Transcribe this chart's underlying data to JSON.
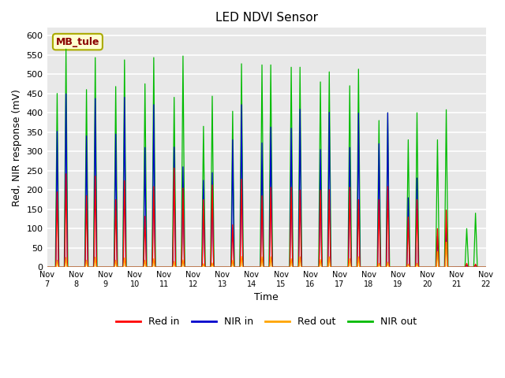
{
  "title": "LED NDVI Sensor",
  "ylabel": "Red, NIR response (mV)",
  "xlabel": "Time",
  "ylim": [
    0,
    620
  ],
  "yticks": [
    0,
    50,
    100,
    150,
    200,
    250,
    300,
    350,
    400,
    450,
    500,
    550,
    600
  ],
  "annotation_text": "MB_tule",
  "annotation_color": "#8B0000",
  "annotation_bg": "#FFFFD0",
  "annotation_border": "#AAAA00",
  "series_colors": {
    "red_in": "#FF0000",
    "nir_in": "#0000CC",
    "red_out": "#FFA500",
    "nir_out": "#00BB00"
  },
  "legend_labels": [
    "Red in",
    "NIR in",
    "Red out",
    "NIR out"
  ],
  "background_color": "#E8E8E8",
  "grid_color": "#FFFFFF",
  "num_days": 15,
  "xtick_labels": [
    "Nov 7",
    "Nov 8",
    "Nov 9",
    "Nov 10",
    "Nov 11",
    "Nov 12",
    "Nov 13",
    "Nov 14",
    "Nov 15",
    "Nov 16",
    "Nov 17",
    "Nov 18",
    "Nov 19",
    "Nov 20",
    "Nov 21",
    "Nov 22"
  ],
  "spike1_red_in": [
    195,
    185,
    175,
    132,
    257,
    175,
    110,
    185,
    207,
    200,
    207,
    175,
    130,
    100,
    10
  ],
  "spike2_red_in": [
    242,
    236,
    224,
    209,
    205,
    213,
    228,
    207,
    200,
    201,
    175,
    209,
    175,
    148,
    8
  ],
  "spike1_nir_in": [
    352,
    340,
    345,
    310,
    311,
    225,
    330,
    322,
    360,
    305,
    310,
    320,
    180,
    80,
    4
  ],
  "spike2_nir_in": [
    449,
    437,
    440,
    421,
    260,
    245,
    421,
    363,
    409,
    401,
    399,
    400,
    231,
    100,
    4
  ],
  "spike1_nir_out": [
    450,
    460,
    468,
    475,
    440,
    365,
    404,
    524,
    518,
    480,
    470,
    380,
    330,
    330,
    100
  ],
  "spike2_nir_out": [
    565,
    543,
    537,
    543,
    547,
    443,
    527,
    524,
    518,
    506,
    513,
    400,
    400,
    408,
    140
  ],
  "spike1_red_out": [
    18,
    18,
    18,
    18,
    15,
    9,
    18,
    27,
    22,
    20,
    22,
    10,
    8,
    40,
    0
  ],
  "spike2_red_out": [
    25,
    26,
    24,
    22,
    19,
    11,
    28,
    27,
    27,
    27,
    27,
    13,
    10,
    65,
    0
  ]
}
